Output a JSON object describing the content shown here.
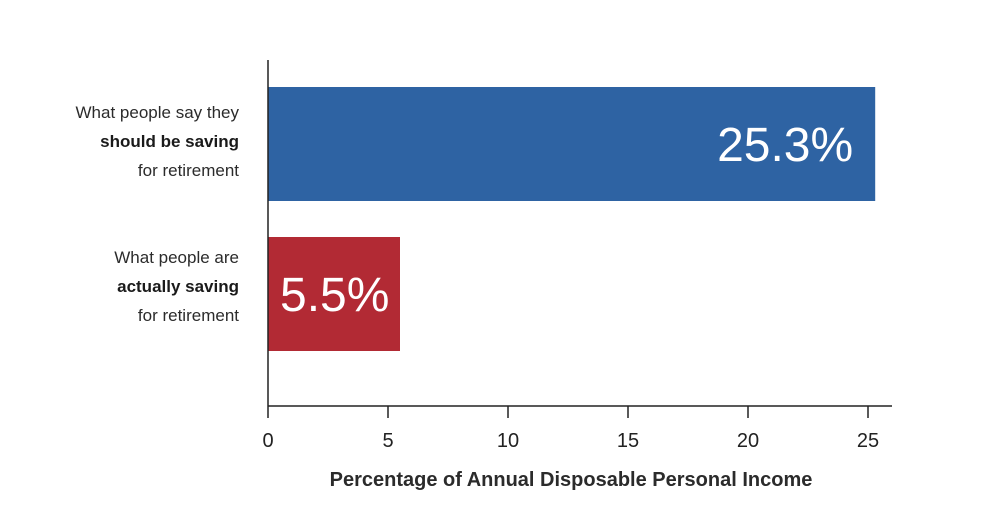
{
  "chart_data": {
    "type": "bar",
    "orientation": "horizontal",
    "categories": [
      {
        "line1": "What people say they",
        "line2": "should be saving",
        "line3": "for retirement"
      },
      {
        "line1": "What people are",
        "line2": "actually saving",
        "line3": "for retirement"
      }
    ],
    "values": [
      25.3,
      5.5
    ],
    "value_labels": [
      "25.3%",
      "5.5%"
    ],
    "colors": [
      "#2e63a3",
      "#b22a34"
    ],
    "xlabel": "Percentage of Annual Disposable Personal Income",
    "xticks": [
      "0",
      "5",
      "10",
      "15",
      "20",
      "25"
    ],
    "xlim": [
      0,
      26
    ],
    "grid": false
  }
}
